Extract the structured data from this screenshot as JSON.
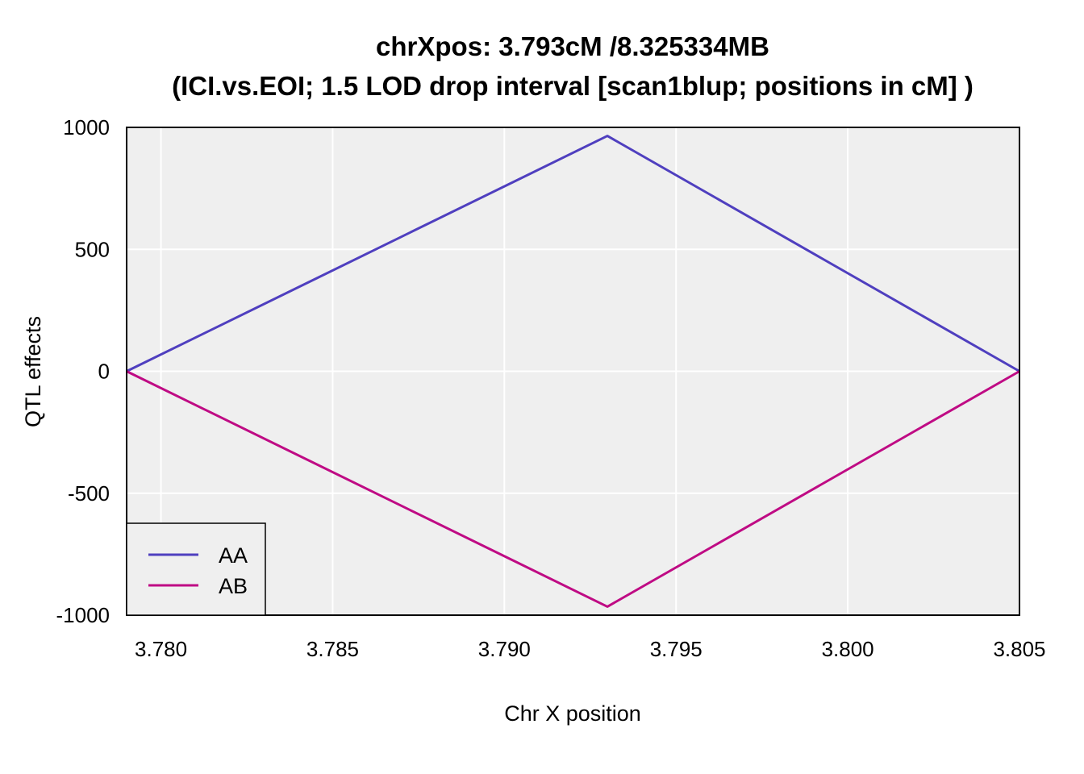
{
  "chart_data": {
    "type": "line",
    "title_line1": "chrXpos: 3.793cM /8.325334MB",
    "title_line2": "(ICI.vs.EOI; 1.5 LOD drop interval [scan1blup; positions in cM] )",
    "xlabel": "Chr X position",
    "ylabel": "QTL effects",
    "xlim": [
      3.779,
      3.805
    ],
    "ylim": [
      -1000,
      1000
    ],
    "x_ticks": [
      3.78,
      3.785,
      3.79,
      3.795,
      3.8,
      3.805
    ],
    "x_tick_labels": [
      "3.780",
      "3.785",
      "3.790",
      "3.795",
      "3.800",
      "3.805"
    ],
    "y_ticks": [
      -1000,
      -500,
      0,
      500,
      1000
    ],
    "y_tick_labels": [
      "-1000",
      "-500",
      "0",
      "500",
      "1000"
    ],
    "grid": true,
    "legend_position": "bottom-left",
    "x": [
      3.779,
      3.793,
      3.805
    ],
    "series": [
      {
        "name": "AA",
        "color": "#4f3fbf",
        "values": [
          0,
          965,
          0
        ]
      },
      {
        "name": "AB",
        "color": "#bf0b84",
        "values": [
          0,
          -965,
          0
        ]
      }
    ]
  }
}
